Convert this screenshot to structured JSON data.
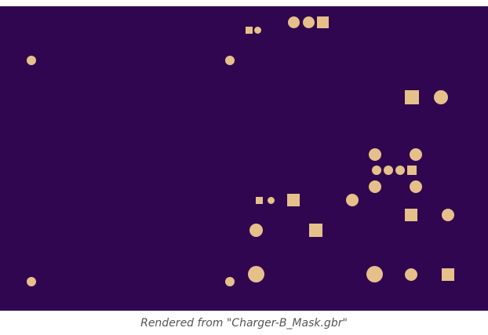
{
  "image": {
    "caption": "Rendered from \"Charger-B_Mask.gbr\"",
    "board_color": "#310650",
    "pad_color": "#e6c08a"
  }
}
